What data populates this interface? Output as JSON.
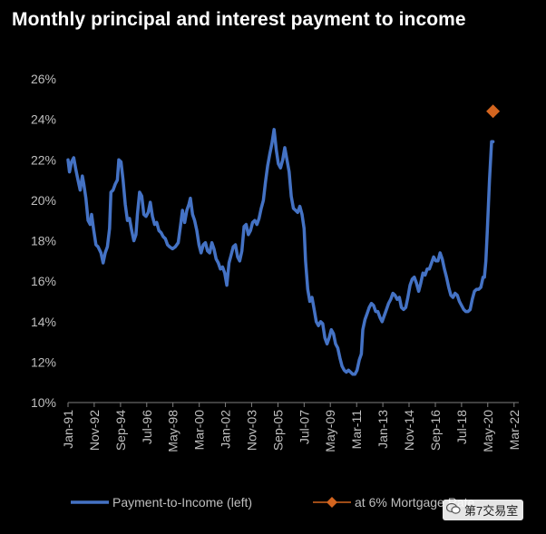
{
  "colors": {
    "background": "#000000",
    "series_line": "#4472c4",
    "marker": "#d4651f",
    "axis": "#7f7f7f",
    "tick_text": "#bfbfbf",
    "title": "#ffffff"
  },
  "chart_data": {
    "type": "line",
    "title": "Monthly principal and interest payment to income",
    "xlabel": "",
    "ylabel": "",
    "ylim": [
      10,
      26
    ],
    "y_ticks": [
      "10%",
      "12%",
      "14%",
      "16%",
      "18%",
      "20%",
      "22%",
      "24%",
      "26%"
    ],
    "x_range": [
      1991.0,
      2022.5
    ],
    "x_ticks": [
      {
        "label": "Jan-91",
        "x": 1991.0
      },
      {
        "label": "Nov-92",
        "x": 1992.83
      },
      {
        "label": "Sep-94",
        "x": 1994.67
      },
      {
        "label": "Jul-96",
        "x": 1996.5
      },
      {
        "label": "May-98",
        "x": 1998.33
      },
      {
        "label": "Mar-00",
        "x": 2000.17
      },
      {
        "label": "Jan-02",
        "x": 2002.0
      },
      {
        "label": "Nov-03",
        "x": 2003.83
      },
      {
        "label": "Sep-05",
        "x": 2005.67
      },
      {
        "label": "Jul-07",
        "x": 2007.5
      },
      {
        "label": "May-09",
        "x": 2009.33
      },
      {
        "label": "Mar-11",
        "x": 2011.17
      },
      {
        "label": "Jan-13",
        "x": 2013.0
      },
      {
        "label": "Nov-14",
        "x": 2014.83
      },
      {
        "label": "Sep-16",
        "x": 2016.67
      },
      {
        "label": "Jul-18",
        "x": 2018.5
      },
      {
        "label": "May-20",
        "x": 2020.33
      },
      {
        "label": "Mar-22",
        "x": 2022.17
      }
    ],
    "grid": false,
    "legend_position": "bottom",
    "series": [
      {
        "name": "Payment-to-Income (left)",
        "kind": "line",
        "points": [
          [
            1991.0,
            22.0
          ],
          [
            1991.1,
            21.4
          ],
          [
            1991.25,
            21.9
          ],
          [
            1991.4,
            22.1
          ],
          [
            1991.55,
            21.5
          ],
          [
            1991.7,
            21.0
          ],
          [
            1991.85,
            20.5
          ],
          [
            1992.0,
            21.2
          ],
          [
            1992.1,
            20.8
          ],
          [
            1992.25,
            20.1
          ],
          [
            1992.4,
            19.0
          ],
          [
            1992.55,
            18.8
          ],
          [
            1992.65,
            19.3
          ],
          [
            1992.8,
            18.5
          ],
          [
            1992.95,
            17.8
          ],
          [
            1993.1,
            17.7
          ],
          [
            1993.3,
            17.4
          ],
          [
            1993.45,
            16.9
          ],
          [
            1993.6,
            17.4
          ],
          [
            1993.75,
            17.7
          ],
          [
            1993.9,
            18.6
          ],
          [
            1994.0,
            20.4
          ],
          [
            1994.15,
            20.5
          ],
          [
            1994.3,
            20.8
          ],
          [
            1994.45,
            21.0
          ],
          [
            1994.55,
            22.0
          ],
          [
            1994.7,
            21.9
          ],
          [
            1994.85,
            21.0
          ],
          [
            1995.0,
            19.8
          ],
          [
            1995.15,
            19.0
          ],
          [
            1995.3,
            19.1
          ],
          [
            1995.45,
            18.5
          ],
          [
            1995.6,
            18.0
          ],
          [
            1995.75,
            18.3
          ],
          [
            1995.85,
            19.3
          ],
          [
            1996.0,
            20.4
          ],
          [
            1996.15,
            20.2
          ],
          [
            1996.3,
            19.3
          ],
          [
            1996.45,
            19.2
          ],
          [
            1996.6,
            19.4
          ],
          [
            1996.75,
            19.9
          ],
          [
            1996.9,
            19.2
          ],
          [
            1997.05,
            18.8
          ],
          [
            1997.2,
            18.9
          ],
          [
            1997.35,
            18.5
          ],
          [
            1997.5,
            18.4
          ],
          [
            1997.65,
            18.2
          ],
          [
            1997.8,
            18.1
          ],
          [
            1997.95,
            17.8
          ],
          [
            1998.1,
            17.7
          ],
          [
            1998.3,
            17.6
          ],
          [
            1998.5,
            17.7
          ],
          [
            1998.7,
            17.9
          ],
          [
            1998.85,
            18.7
          ],
          [
            1999.0,
            19.5
          ],
          [
            1999.15,
            18.9
          ],
          [
            1999.3,
            19.5
          ],
          [
            1999.45,
            19.8
          ],
          [
            1999.55,
            20.1
          ],
          [
            1999.7,
            19.3
          ],
          [
            1999.85,
            19.0
          ],
          [
            2000.0,
            18.5
          ],
          [
            2000.15,
            17.8
          ],
          [
            2000.3,
            17.4
          ],
          [
            2000.45,
            17.8
          ],
          [
            2000.6,
            17.9
          ],
          [
            2000.75,
            17.5
          ],
          [
            2000.9,
            17.4
          ],
          [
            2001.05,
            17.9
          ],
          [
            2001.2,
            17.6
          ],
          [
            2001.35,
            17.1
          ],
          [
            2001.5,
            16.9
          ],
          [
            2001.65,
            16.6
          ],
          [
            2001.8,
            16.7
          ],
          [
            2001.95,
            16.4
          ],
          [
            2002.1,
            15.8
          ],
          [
            2002.25,
            16.9
          ],
          [
            2002.4,
            17.3
          ],
          [
            2002.55,
            17.7
          ],
          [
            2002.7,
            17.8
          ],
          [
            2002.85,
            17.2
          ],
          [
            2003.0,
            17.0
          ],
          [
            2003.15,
            17.5
          ],
          [
            2003.3,
            18.7
          ],
          [
            2003.45,
            18.8
          ],
          [
            2003.6,
            18.3
          ],
          [
            2003.75,
            18.5
          ],
          [
            2003.9,
            18.9
          ],
          [
            2004.05,
            19.0
          ],
          [
            2004.2,
            18.8
          ],
          [
            2004.35,
            19.1
          ],
          [
            2004.5,
            19.6
          ],
          [
            2004.65,
            20.0
          ],
          [
            2004.8,
            20.9
          ],
          [
            2004.95,
            21.7
          ],
          [
            2005.1,
            22.3
          ],
          [
            2005.25,
            22.8
          ],
          [
            2005.4,
            23.5
          ],
          [
            2005.55,
            22.5
          ],
          [
            2005.7,
            21.8
          ],
          [
            2005.85,
            21.6
          ],
          [
            2006.0,
            22.0
          ],
          [
            2006.15,
            22.6
          ],
          [
            2006.3,
            22.0
          ],
          [
            2006.45,
            21.4
          ],
          [
            2006.6,
            20.2
          ],
          [
            2006.75,
            19.6
          ],
          [
            2006.9,
            19.5
          ],
          [
            2007.05,
            19.4
          ],
          [
            2007.2,
            19.7
          ],
          [
            2007.35,
            19.3
          ],
          [
            2007.5,
            18.6
          ],
          [
            2007.6,
            17.0
          ],
          [
            2007.75,
            15.6
          ],
          [
            2007.9,
            15.0
          ],
          [
            2008.05,
            15.2
          ],
          [
            2008.2,
            14.6
          ],
          [
            2008.35,
            14.0
          ],
          [
            2008.5,
            13.8
          ],
          [
            2008.65,
            14.0
          ],
          [
            2008.8,
            13.9
          ],
          [
            2008.95,
            13.2
          ],
          [
            2009.1,
            12.9
          ],
          [
            2009.25,
            13.2
          ],
          [
            2009.4,
            13.6
          ],
          [
            2009.55,
            13.4
          ],
          [
            2009.7,
            12.9
          ],
          [
            2009.85,
            12.7
          ],
          [
            2010.0,
            12.2
          ],
          [
            2010.15,
            11.8
          ],
          [
            2010.3,
            11.6
          ],
          [
            2010.45,
            11.5
          ],
          [
            2010.6,
            11.6
          ],
          [
            2010.75,
            11.5
          ],
          [
            2010.9,
            11.4
          ],
          [
            2011.05,
            11.4
          ],
          [
            2011.2,
            11.6
          ],
          [
            2011.35,
            12.1
          ],
          [
            2011.5,
            12.4
          ],
          [
            2011.6,
            13.6
          ],
          [
            2011.75,
            14.1
          ],
          [
            2011.9,
            14.4
          ],
          [
            2012.05,
            14.7
          ],
          [
            2012.2,
            14.9
          ],
          [
            2012.35,
            14.8
          ],
          [
            2012.5,
            14.5
          ],
          [
            2012.65,
            14.5
          ],
          [
            2012.8,
            14.2
          ],
          [
            2012.95,
            14.0
          ],
          [
            2013.1,
            14.3
          ],
          [
            2013.25,
            14.6
          ],
          [
            2013.4,
            14.9
          ],
          [
            2013.55,
            15.1
          ],
          [
            2013.7,
            15.4
          ],
          [
            2013.85,
            15.3
          ],
          [
            2014.0,
            15.1
          ],
          [
            2014.15,
            15.2
          ],
          [
            2014.3,
            14.7
          ],
          [
            2014.45,
            14.6
          ],
          [
            2014.6,
            14.7
          ],
          [
            2014.75,
            15.2
          ],
          [
            2014.9,
            15.8
          ],
          [
            2015.05,
            16.1
          ],
          [
            2015.2,
            16.2
          ],
          [
            2015.35,
            15.9
          ],
          [
            2015.5,
            15.5
          ],
          [
            2015.65,
            15.9
          ],
          [
            2015.8,
            16.4
          ],
          [
            2015.95,
            16.3
          ],
          [
            2016.1,
            16.6
          ],
          [
            2016.25,
            16.6
          ],
          [
            2016.4,
            16.9
          ],
          [
            2016.55,
            17.2
          ],
          [
            2016.7,
            17.0
          ],
          [
            2016.85,
            17.0
          ],
          [
            2017.0,
            17.4
          ],
          [
            2017.15,
            17.1
          ],
          [
            2017.3,
            16.6
          ],
          [
            2017.45,
            16.2
          ],
          [
            2017.6,
            15.7
          ],
          [
            2017.75,
            15.3
          ],
          [
            2017.9,
            15.2
          ],
          [
            2018.05,
            15.4
          ],
          [
            2018.2,
            15.3
          ],
          [
            2018.35,
            15.0
          ],
          [
            2018.5,
            14.8
          ],
          [
            2018.65,
            14.6
          ],
          [
            2018.8,
            14.5
          ],
          [
            2018.95,
            14.5
          ],
          [
            2019.1,
            14.6
          ],
          [
            2019.25,
            15.1
          ],
          [
            2019.4,
            15.5
          ],
          [
            2019.55,
            15.6
          ],
          [
            2019.7,
            15.6
          ],
          [
            2019.85,
            15.7
          ],
          [
            2020.0,
            16.2
          ],
          [
            2020.1,
            16.2
          ],
          [
            2020.2,
            17.0
          ],
          [
            2020.3,
            18.5
          ],
          [
            2020.45,
            21.0
          ],
          [
            2020.6,
            22.9
          ],
          [
            2020.7,
            22.9
          ]
        ]
      },
      {
        "name": "at 6% Mortgage Rate",
        "kind": "marker",
        "points": [
          [
            2020.7,
            24.4
          ]
        ]
      }
    ],
    "annotations": []
  },
  "watermark": {
    "text": "第7交易室"
  }
}
